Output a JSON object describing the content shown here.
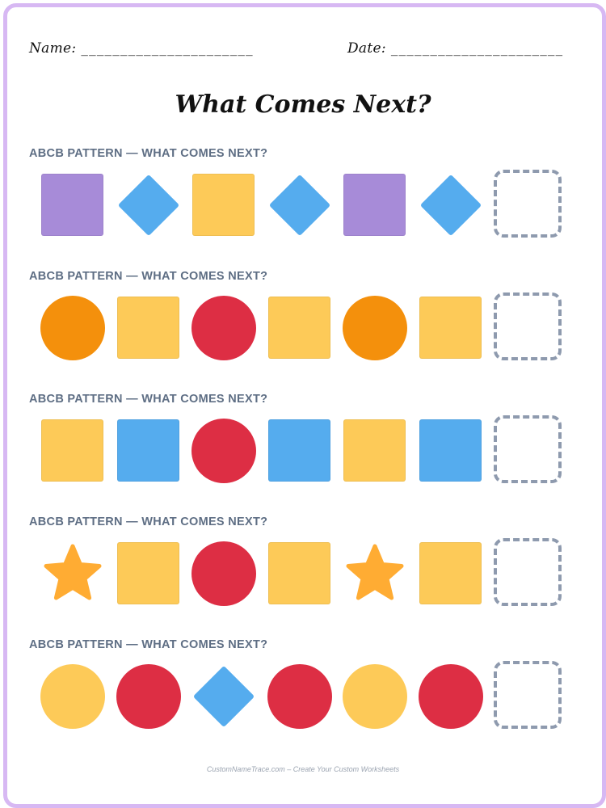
{
  "header": {
    "name_label": "Name:",
    "name_line": "______________________",
    "date_label": "Date:",
    "date_line": "______________________"
  },
  "title": "What Comes Next?",
  "colors": {
    "purple": "#a78bd8",
    "blue": "#55acee",
    "yellow": "#fdca58",
    "orange": "#f4900c",
    "red": "#dd2e44",
    "star": "#ffac33",
    "frame": "#d7b8f3",
    "answer_border": "#8e9aae",
    "label": "#5e6e84"
  },
  "rows": [
    {
      "label": "ABCB PATTERN — WHAT COMES NEXT?",
      "shapes": [
        {
          "shape": "square",
          "color": "purple"
        },
        {
          "shape": "diamond",
          "color": "blue"
        },
        {
          "shape": "square",
          "color": "yellow"
        },
        {
          "shape": "diamond",
          "color": "blue"
        },
        {
          "shape": "square",
          "color": "purple"
        },
        {
          "shape": "diamond",
          "color": "blue"
        }
      ]
    },
    {
      "label": "ABCB PATTERN — WHAT COMES NEXT?",
      "shapes": [
        {
          "shape": "circle",
          "color": "orange"
        },
        {
          "shape": "square",
          "color": "yellow"
        },
        {
          "shape": "circle",
          "color": "red"
        },
        {
          "shape": "square",
          "color": "yellow"
        },
        {
          "shape": "circle",
          "color": "orange"
        },
        {
          "shape": "square",
          "color": "yellow"
        }
      ]
    },
    {
      "label": "ABCB PATTERN — WHAT COMES NEXT?",
      "shapes": [
        {
          "shape": "square",
          "color": "yellow"
        },
        {
          "shape": "square",
          "color": "blue"
        },
        {
          "shape": "circle",
          "color": "red"
        },
        {
          "shape": "square",
          "color": "blue"
        },
        {
          "shape": "square",
          "color": "yellow"
        },
        {
          "shape": "square",
          "color": "blue"
        }
      ]
    },
    {
      "label": "ABCB PATTERN — WHAT COMES NEXT?",
      "shapes": [
        {
          "shape": "star",
          "color": "star"
        },
        {
          "shape": "square",
          "color": "yellow"
        },
        {
          "shape": "circle",
          "color": "red"
        },
        {
          "shape": "square",
          "color": "yellow"
        },
        {
          "shape": "star",
          "color": "star"
        },
        {
          "shape": "square",
          "color": "yellow"
        }
      ]
    },
    {
      "label": "ABCB PATTERN — WHAT COMES NEXT?",
      "shapes": [
        {
          "shape": "circle",
          "color": "yellow"
        },
        {
          "shape": "circle",
          "color": "red"
        },
        {
          "shape": "diamond",
          "color": "blue"
        },
        {
          "shape": "circle",
          "color": "red"
        },
        {
          "shape": "circle",
          "color": "yellow"
        },
        {
          "shape": "circle",
          "color": "red"
        }
      ]
    }
  ],
  "footer": "CustomNameTrace.com – Create Your Custom Worksheets"
}
